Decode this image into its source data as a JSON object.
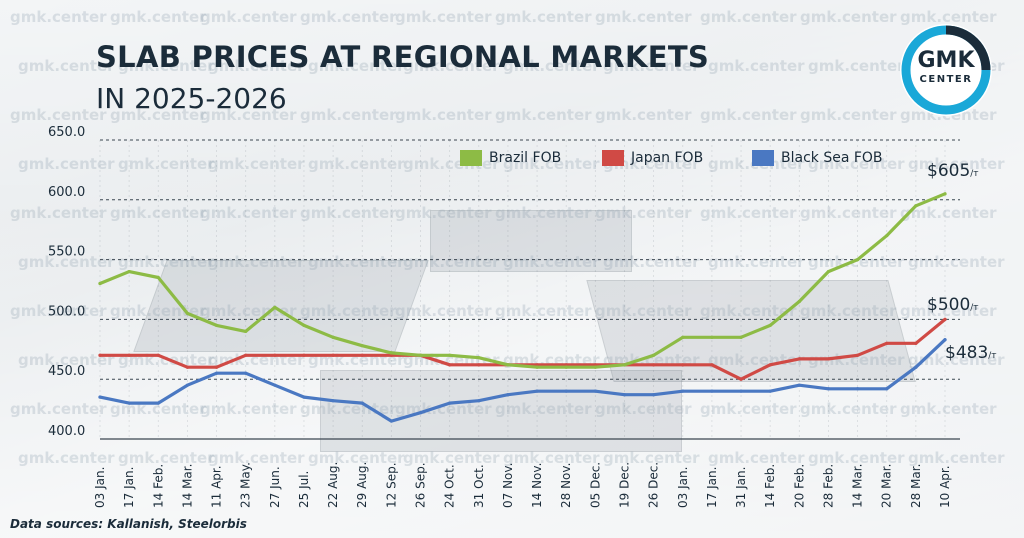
{
  "title": "SLAB PRICES AT REGIONAL MARKETS",
  "subtitle": "IN 2025-2026",
  "logo": {
    "main": "GMK",
    "sub": "CENTER"
  },
  "watermark": "gmk.center",
  "source": "Data sources: Kallanish, Steelorbis",
  "end_labels": [
    {
      "series": "Brazil FOB",
      "text": "$605",
      "unit": "/т"
    },
    {
      "series": "Japan FOB",
      "text": "$500",
      "unit": "/т"
    },
    {
      "series": "Black Sea FOB",
      "text": "$483",
      "unit": "/т"
    }
  ],
  "colors": {
    "Brazil FOB": "#8dbb45",
    "Japan FOB": "#d04a45",
    "Black Sea FOB": "#4a78c2",
    "title": "#1b2c3a",
    "accent": "#1aa8d8"
  },
  "chart_data": {
    "type": "line",
    "title": "SLAB PRICES AT REGIONAL MARKETS",
    "subtitle": "IN 2025-2026",
    "ylim": [
      400,
      650
    ],
    "yticks": [
      "400.0",
      "450.0",
      "500.0",
      "550.0",
      "600.0",
      "650.0"
    ],
    "legend_position": "top",
    "grid": "horizontal dashed",
    "categories": [
      "03 Jan.",
      "17 Jan.",
      "14 Feb.",
      "14 Mar.",
      "11 Apr.",
      "23 May.",
      "27 Jun.",
      "25 Jul.",
      "22 Aug.",
      "29 Aug.",
      "12 Sep.",
      "26 Sep.",
      "24 Oct.",
      "31 Oct.",
      "07 Nov.",
      "14 Nov.",
      "28 Nov.",
      "05 Dec.",
      "19 Dec.",
      "26 Dec.",
      "03 Jan.",
      "17 Jan.",
      "31 Jan.",
      "14 Feb.",
      "20 Feb.",
      "28 Feb.",
      "14 Mar.",
      "20 Mar.",
      "28 Mar.",
      "10 Apr."
    ],
    "series": [
      {
        "name": "Brazil FOB",
        "values": [
          530,
          540,
          535,
          505,
          495,
          490,
          510,
          495,
          485,
          478,
          472,
          470,
          470,
          468,
          462,
          460,
          460,
          460,
          462,
          470,
          485,
          485,
          485,
          495,
          515,
          540,
          550,
          570,
          595,
          605
        ]
      },
      {
        "name": "Japan FOB",
        "values": [
          470,
          470,
          470,
          460,
          460,
          470,
          470,
          470,
          470,
          470,
          470,
          470,
          462,
          462,
          462,
          462,
          462,
          462,
          462,
          462,
          462,
          462,
          450,
          462,
          467,
          467,
          470,
          480,
          480,
          500
        ]
      },
      {
        "name": "Black Sea FOB",
        "values": [
          435,
          430,
          430,
          445,
          455,
          455,
          445,
          435,
          432,
          430,
          415,
          422,
          430,
          432,
          437,
          440,
          440,
          440,
          437,
          437,
          440,
          440,
          440,
          440,
          445,
          442,
          442,
          442,
          460,
          483
        ]
      }
    ]
  }
}
